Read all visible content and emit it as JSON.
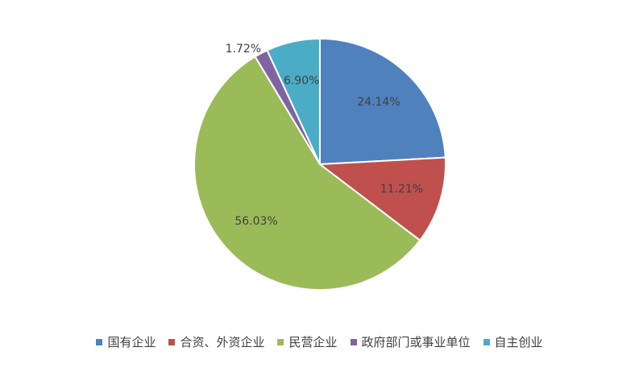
{
  "chart_data": {
    "type": "pie",
    "categories": [
      "国有企业",
      "合资、外资企业",
      "民营企业",
      "政府部门或事业单位",
      "自主创业"
    ],
    "values": [
      24.14,
      11.21,
      56.03,
      1.72,
      6.9
    ],
    "value_labels": [
      "24.14%",
      "11.21%",
      "56.03%",
      "1.72%",
      "6.90%"
    ],
    "colors": [
      "#4f81bd",
      "#c0504d",
      "#9bbb59",
      "#8064a2",
      "#4bacc6"
    ],
    "legend": "bottom"
  }
}
